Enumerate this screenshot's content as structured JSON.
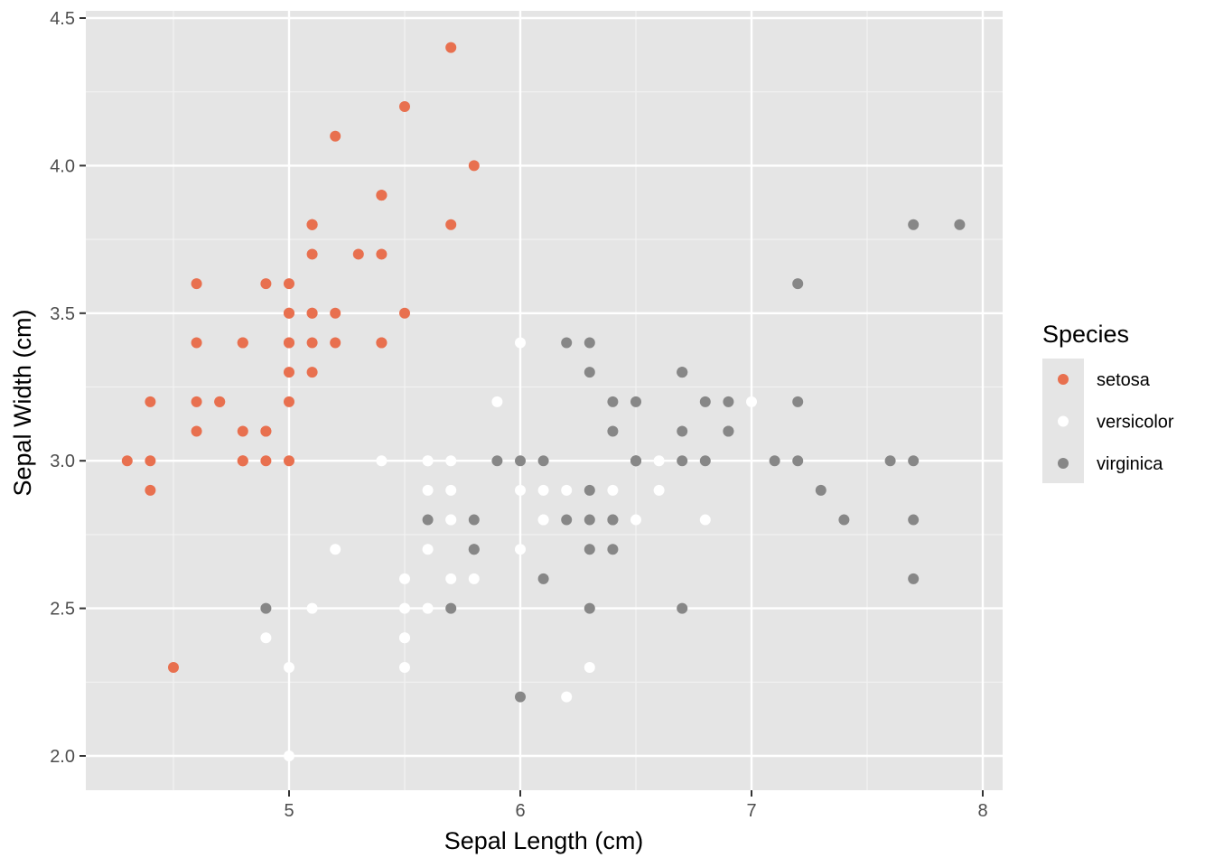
{
  "chart_data": {
    "type": "scatter",
    "xlabel": "Sepal Length (cm)",
    "ylabel": "Sepal Width (cm)",
    "xlim": [
      4.2,
      8.1
    ],
    "ylim": [
      1.9,
      4.5
    ],
    "x_ticks": [
      5,
      6,
      7,
      8
    ],
    "x_tick_labels": [
      "5",
      "6",
      "7",
      "8"
    ],
    "y_ticks": [
      2.0,
      2.5,
      3.0,
      3.5,
      4.0,
      4.5
    ],
    "y_tick_labels": [
      "2.0",
      "2.5",
      "3.0",
      "3.5",
      "4.0",
      "4.5"
    ],
    "grid": true,
    "panel_background": "#e5e5e5",
    "legend": {
      "title": "Species",
      "position": "right"
    },
    "series": [
      {
        "name": "setosa",
        "color": "#e8704f",
        "points": [
          [
            5.1,
            3.5
          ],
          [
            4.9,
            3.0
          ],
          [
            4.7,
            3.2
          ],
          [
            4.6,
            3.1
          ],
          [
            5.0,
            3.6
          ],
          [
            5.4,
            3.9
          ],
          [
            4.6,
            3.4
          ],
          [
            5.0,
            3.4
          ],
          [
            4.4,
            2.9
          ],
          [
            4.9,
            3.1
          ],
          [
            5.4,
            3.7
          ],
          [
            4.8,
            3.4
          ],
          [
            4.8,
            3.0
          ],
          [
            4.3,
            3.0
          ],
          [
            5.8,
            4.0
          ],
          [
            5.7,
            4.4
          ],
          [
            5.4,
            3.9
          ],
          [
            5.1,
            3.5
          ],
          [
            5.7,
            3.8
          ],
          [
            5.1,
            3.8
          ],
          [
            5.4,
            3.4
          ],
          [
            5.1,
            3.7
          ],
          [
            4.6,
            3.6
          ],
          [
            5.1,
            3.3
          ],
          [
            4.8,
            3.4
          ],
          [
            5.0,
            3.0
          ],
          [
            5.0,
            3.4
          ],
          [
            5.2,
            3.5
          ],
          [
            5.2,
            3.4
          ],
          [
            4.7,
            3.2
          ],
          [
            4.8,
            3.1
          ],
          [
            5.4,
            3.4
          ],
          [
            5.2,
            4.1
          ],
          [
            5.5,
            4.2
          ],
          [
            4.9,
            3.1
          ],
          [
            5.0,
            3.2
          ],
          [
            5.5,
            3.5
          ],
          [
            4.9,
            3.6
          ],
          [
            4.4,
            3.0
          ],
          [
            5.1,
            3.4
          ],
          [
            5.0,
            3.5
          ],
          [
            4.5,
            2.3
          ],
          [
            4.4,
            3.2
          ],
          [
            5.0,
            3.5
          ],
          [
            5.1,
            3.8
          ],
          [
            4.8,
            3.0
          ],
          [
            5.1,
            3.8
          ],
          [
            4.6,
            3.2
          ],
          [
            5.3,
            3.7
          ],
          [
            5.0,
            3.3
          ]
        ]
      },
      {
        "name": "versicolor",
        "color": "#ffffff",
        "points": [
          [
            7.0,
            3.2
          ],
          [
            6.4,
            3.2
          ],
          [
            6.9,
            3.1
          ],
          [
            5.5,
            2.3
          ],
          [
            6.5,
            2.8
          ],
          [
            5.7,
            2.8
          ],
          [
            6.3,
            3.3
          ],
          [
            4.9,
            2.4
          ],
          [
            6.6,
            2.9
          ],
          [
            5.2,
            2.7
          ],
          [
            5.0,
            2.0
          ],
          [
            5.9,
            3.0
          ],
          [
            6.0,
            2.2
          ],
          [
            6.1,
            2.9
          ],
          [
            5.6,
            2.9
          ],
          [
            6.7,
            3.1
          ],
          [
            5.6,
            3.0
          ],
          [
            5.8,
            2.7
          ],
          [
            6.2,
            2.2
          ],
          [
            5.6,
            2.5
          ],
          [
            5.9,
            3.2
          ],
          [
            6.1,
            2.8
          ],
          [
            6.3,
            2.5
          ],
          [
            6.1,
            2.8
          ],
          [
            6.4,
            2.9
          ],
          [
            6.6,
            3.0
          ],
          [
            6.8,
            2.8
          ],
          [
            6.7,
            3.0
          ],
          [
            6.0,
            2.9
          ],
          [
            5.7,
            2.6
          ],
          [
            5.5,
            2.4
          ],
          [
            5.5,
            2.4
          ],
          [
            5.8,
            2.7
          ],
          [
            6.0,
            2.7
          ],
          [
            5.4,
            3.0
          ],
          [
            6.0,
            3.4
          ],
          [
            6.7,
            3.1
          ],
          [
            6.3,
            2.3
          ],
          [
            5.6,
            3.0
          ],
          [
            5.5,
            2.5
          ],
          [
            5.5,
            2.6
          ],
          [
            6.1,
            3.0
          ],
          [
            5.8,
            2.6
          ],
          [
            5.0,
            2.3
          ],
          [
            5.6,
            2.7
          ],
          [
            5.7,
            3.0
          ],
          [
            5.7,
            2.9
          ],
          [
            6.2,
            2.9
          ],
          [
            5.1,
            2.5
          ],
          [
            5.7,
            2.8
          ]
        ]
      },
      {
        "name": "virginica",
        "color": "#878787",
        "points": [
          [
            6.3,
            3.3
          ],
          [
            5.8,
            2.7
          ],
          [
            7.1,
            3.0
          ],
          [
            6.3,
            2.9
          ],
          [
            6.5,
            3.0
          ],
          [
            7.6,
            3.0
          ],
          [
            4.9,
            2.5
          ],
          [
            7.3,
            2.9
          ],
          [
            6.7,
            2.5
          ],
          [
            7.2,
            3.6
          ],
          [
            6.5,
            3.2
          ],
          [
            6.4,
            2.7
          ],
          [
            6.8,
            3.0
          ],
          [
            5.7,
            2.5
          ],
          [
            5.8,
            2.8
          ],
          [
            6.4,
            3.2
          ],
          [
            6.5,
            3.0
          ],
          [
            7.7,
            3.8
          ],
          [
            7.7,
            2.6
          ],
          [
            6.0,
            2.2
          ],
          [
            6.9,
            3.2
          ],
          [
            5.6,
            2.8
          ],
          [
            7.7,
            2.8
          ],
          [
            6.3,
            2.7
          ],
          [
            6.7,
            3.3
          ],
          [
            7.2,
            3.2
          ],
          [
            6.2,
            2.8
          ],
          [
            6.1,
            3.0
          ],
          [
            6.4,
            2.8
          ],
          [
            7.2,
            3.0
          ],
          [
            7.4,
            2.8
          ],
          [
            7.9,
            3.8
          ],
          [
            6.4,
            2.8
          ],
          [
            6.3,
            2.8
          ],
          [
            6.1,
            2.6
          ],
          [
            7.7,
            3.0
          ],
          [
            6.3,
            3.4
          ],
          [
            6.4,
            3.1
          ],
          [
            6.0,
            3.0
          ],
          [
            6.9,
            3.1
          ],
          [
            6.7,
            3.1
          ],
          [
            6.9,
            3.1
          ],
          [
            5.8,
            2.7
          ],
          [
            6.8,
            3.2
          ],
          [
            6.7,
            3.3
          ],
          [
            6.7,
            3.0
          ],
          [
            6.3,
            2.5
          ],
          [
            6.5,
            3.0
          ],
          [
            6.2,
            3.4
          ],
          [
            5.9,
            3.0
          ]
        ]
      }
    ]
  }
}
